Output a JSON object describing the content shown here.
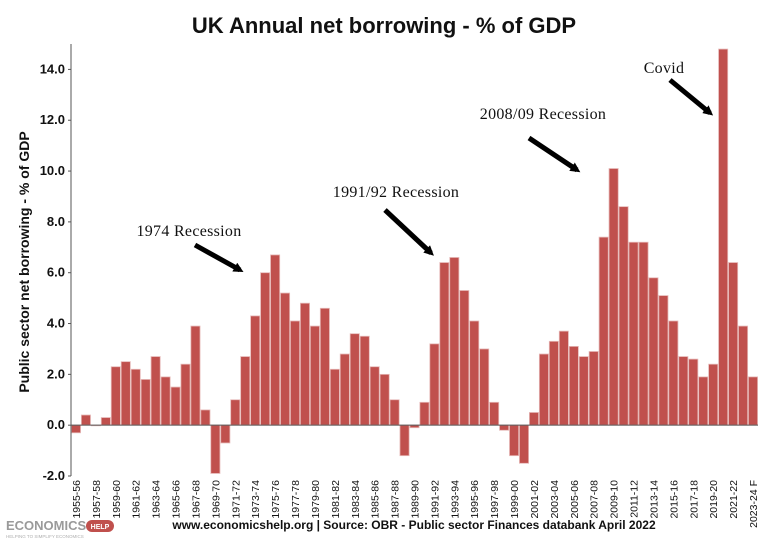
{
  "chart_data": {
    "type": "bar",
    "title": "UK Annual net borrowing - % of GDP",
    "ylabel": "Public sector net borrowing - % of GDP",
    "xlabel": "",
    "ylim": [
      -2.0,
      15.0
    ],
    "yticks": [
      -2.0,
      0.0,
      2.0,
      4.0,
      6.0,
      8.0,
      10.0,
      12.0,
      14.0
    ],
    "ytick_labels": [
      "-2.0",
      "0.0",
      "2.0",
      "4.0",
      "6.0",
      "8.0",
      "10.0",
      "12.0",
      "14.0"
    ],
    "bar_color": "#c0504d",
    "grid": false,
    "categories": [
      "1955-56",
      "1956-57",
      "1957-58",
      "1958-59",
      "1959-60",
      "1960-61",
      "1961-62",
      "1962-63",
      "1963-64",
      "1964-65",
      "1965-66",
      "1966-67",
      "1967-68",
      "1968-69",
      "1969-70",
      "1970-71",
      "1971-72",
      "1972-73",
      "1973-74",
      "1974-75",
      "1975-76",
      "1976-77",
      "1977-78",
      "1978-79",
      "1979-80",
      "1980-81",
      "1981-82",
      "1982-83",
      "1983-84",
      "1984-85",
      "1985-86",
      "1986-87",
      "1987-88",
      "1988-89",
      "1989-90",
      "1990-91",
      "1991-92",
      "1992-93",
      "1993-94",
      "1994-95",
      "1995-96",
      "1996-97",
      "1997-98",
      "1998-99",
      "1999-00",
      "2000-01",
      "2001-02",
      "2002-03",
      "2003-04",
      "2004-05",
      "2005-06",
      "2006-07",
      "2007-08",
      "2008-09",
      "2009-10",
      "2010-11",
      "2011-12",
      "2012-13",
      "2013-14",
      "2014-15",
      "2015-16",
      "2016-17",
      "2017-18",
      "2018-19",
      "2019-20",
      "2020-21",
      "2021-22",
      "2022-23",
      "2023-24 F"
    ],
    "values": [
      -0.3,
      0.4,
      0.0,
      0.3,
      2.3,
      2.5,
      2.2,
      1.8,
      2.7,
      1.9,
      1.5,
      2.4,
      3.9,
      0.6,
      -1.9,
      -0.7,
      1.0,
      2.7,
      4.3,
      6.0,
      6.7,
      5.2,
      4.1,
      4.8,
      3.9,
      4.6,
      2.2,
      2.8,
      3.6,
      3.5,
      2.3,
      2.0,
      1.0,
      -1.2,
      -0.1,
      0.9,
      3.2,
      6.4,
      6.6,
      5.3,
      4.1,
      3.0,
      0.9,
      -0.2,
      -1.2,
      -1.5,
      0.5,
      2.8,
      3.3,
      3.7,
      3.1,
      2.7,
      2.9,
      7.4,
      10.1,
      8.6,
      7.2,
      7.2,
      5.8,
      5.1,
      4.1,
      2.7,
      2.6,
      1.9,
      2.4,
      14.8,
      6.4,
      3.9,
      1.9
    ],
    "tick_labels": [
      "1955-56",
      "1957-58",
      "1959-60",
      "1961-62",
      "1963-64",
      "1965-66",
      "1967-68",
      "1969-70",
      "1971-72",
      "1973-74",
      "1975-76",
      "1977-78",
      "1979-80",
      "1981-82",
      "1983-84",
      "1985-86",
      "1987-88",
      "1989-90",
      "1991-92",
      "1993-94",
      "1995-96",
      "1997-98",
      "1999-00",
      "2001-02",
      "2003-04",
      "2005-06",
      "2007-08",
      "2009-10",
      "2011-12",
      "2013-14",
      "2015-16",
      "2017-18",
      "2019-20",
      "2021-22",
      "2023-24 F"
    ],
    "annotations": [
      {
        "text": "1974 Recession",
        "target": "1974-75"
      },
      {
        "text": "1991/92 Recession",
        "target": "1992-93"
      },
      {
        "text": "2008/09 Recession",
        "target": "2008-09"
      },
      {
        "text": "Covid",
        "target": "2020-21"
      }
    ]
  },
  "footer": {
    "source": "www.economicshelp.org | Source: OBR - Public sector Finances databank April 2022"
  },
  "logo": {
    "name": "ECONOMICS",
    "badge": "HELP",
    "tagline": "HELPING TO SIMPLIFY ECONOMICS"
  }
}
